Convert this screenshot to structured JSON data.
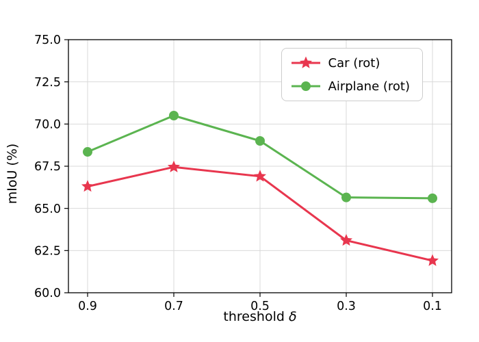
{
  "chart_data": {
    "type": "line",
    "x": [
      0.9,
      0.7,
      0.5,
      0.3,
      0.1
    ],
    "series": [
      {
        "name": "Car (rot)",
        "color": "#e8364e",
        "marker": "star",
        "values": [
          66.3,
          67.45,
          66.9,
          63.1,
          61.9
        ]
      },
      {
        "name": "Airplane (rot)",
        "color": "#5bb450",
        "marker": "circle",
        "values": [
          68.35,
          70.5,
          69.0,
          65.65,
          65.6
        ]
      }
    ],
    "title": "",
    "xlabel": "threshold δ",
    "ylabel": "mIoU (%)",
    "ylim": [
      60.0,
      75.0
    ],
    "yticks": [
      60.0,
      62.5,
      65.0,
      67.5,
      70.0,
      72.5,
      75.0
    ],
    "xtick_labels": [
      "0.9",
      "0.7",
      "0.5",
      "0.3",
      "0.1"
    ],
    "grid": true,
    "grid_color": "#d9d9d9",
    "spine_color": "#000000",
    "legend_position": "upper right"
  }
}
